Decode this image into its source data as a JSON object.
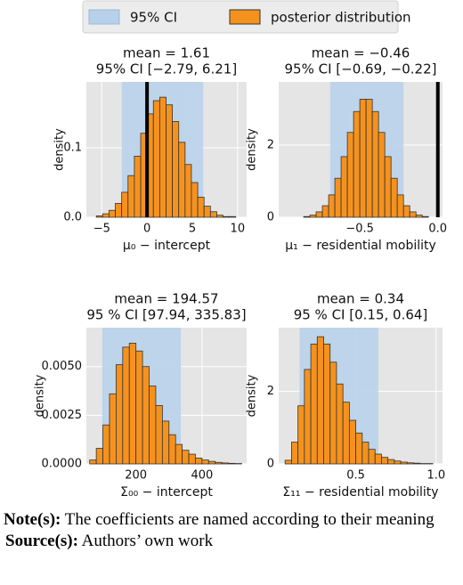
{
  "legend": [
    {
      "name": "95% CI",
      "color": "#b8d1ea"
    },
    {
      "name": "posterior distribution",
      "color": "#f5921e"
    }
  ],
  "chart_data": [
    {
      "type": "histogram",
      "title": [
        "mean = 1.61",
        "95% CI [−2.79, 6.21]"
      ],
      "ci": [
        -2.79,
        6.21
      ],
      "vline": 0,
      "xlabel": "μ₀ − intercept",
      "ylabel": "density",
      "bins": [
        -5.6,
        -4.9,
        -4.2,
        -3.5,
        -2.8,
        -2.1,
        -1.4,
        -0.7,
        0,
        0.7,
        1.4,
        2.1,
        2.8,
        3.5,
        4.2,
        4.9,
        5.6,
        6.3,
        7,
        7.7,
        8.4,
        9.1,
        9.8
      ],
      "values": [
        0.002,
        0.005,
        0.01,
        0.02,
        0.036,
        0.06,
        0.088,
        0.121,
        0.149,
        0.168,
        0.173,
        0.162,
        0.138,
        0.108,
        0.076,
        0.05,
        0.029,
        0.016,
        0.008,
        0.003,
        0.001,
        0.001
      ],
      "xlim": [
        -6.7,
        11
      ],
      "ylim": [
        0,
        0.195
      ],
      "xticks": [
        {
          "value": -5,
          "label": "−5"
        },
        0,
        5,
        10
      ],
      "yticks": [
        {
          "value": 0,
          "label": "0.0"
        },
        0.1
      ],
      "grid": true
    },
    {
      "type": "histogram",
      "title": [
        "mean = −0.46",
        "95% CI [−0.69, −0.22]"
      ],
      "ci": [
        -0.69,
        -0.22
      ],
      "vline": 0,
      "xlabel": "μ₁ − residential mobility",
      "ylabel": "density",
      "bins": [
        -0.86,
        -0.82,
        -0.78,
        -0.74,
        -0.7,
        -0.66,
        -0.62,
        -0.58,
        -0.54,
        -0.5,
        -0.46,
        -0.42,
        -0.38,
        -0.34,
        -0.3,
        -0.26,
        -0.22,
        -0.18,
        -0.14,
        -0.1,
        -0.06
      ],
      "values": [
        0.02,
        0.06,
        0.15,
        0.32,
        0.62,
        1.08,
        1.68,
        2.35,
        2.93,
        3.27,
        3.27,
        2.93,
        2.35,
        1.68,
        1.08,
        0.62,
        0.32,
        0.15,
        0.06,
        0.02
      ],
      "xlim": [
        -1.02,
        0.03
      ],
      "ylim": [
        0,
        3.75
      ],
      "xticks": [
        {
          "value": -0.5,
          "label": "−0.5"
        },
        {
          "value": 0,
          "label": "0.0"
        }
      ],
      "yticks": [
        0,
        2
      ],
      "grid": true
    },
    {
      "type": "histogram",
      "title": [
        "mean = 194.57",
        "95 % CI [97.94, 335.83]"
      ],
      "ci": [
        97.94,
        335.83
      ],
      "xlabel": "Σ₀₀ − intercept",
      "ylabel": "density",
      "bins": [
        60,
        80,
        100,
        120,
        140,
        160,
        180,
        200,
        220,
        240,
        260,
        280,
        300,
        320,
        340,
        360,
        380,
        400,
        420,
        440,
        460,
        480,
        500,
        520
      ],
      "values": [
        0.0002,
        0.0008,
        0.002,
        0.0036,
        0.0051,
        0.006,
        0.0062,
        0.0058,
        0.005,
        0.004,
        0.003,
        0.0022,
        0.0015,
        0.001,
        0.0007,
        0.0005,
        0.0003,
        0.0002,
        0.00013,
        8e-05,
        5e-05,
        3e-05,
        2e-05
      ],
      "xlim": [
        50,
        535
      ],
      "ylim": [
        0,
        0.007
      ],
      "xticks": [
        200,
        400
      ],
      "yticks": [
        {
          "value": 0,
          "label": "0.0000"
        },
        {
          "value": 0.0025,
          "label": "0.0025"
        },
        {
          "value": 0.005,
          "label": "0.0050"
        }
      ],
      "grid": true
    },
    {
      "type": "histogram",
      "title": [
        "mean = 0.34",
        "95 % CI [0.15, 0.64]"
      ],
      "ci": [
        0.15,
        0.64
      ],
      "xlabel": "Σ₁₁ − residential mobility",
      "ylabel": "density",
      "bins": [
        0.06,
        0.1,
        0.14,
        0.18,
        0.22,
        0.26,
        0.3,
        0.34,
        0.38,
        0.42,
        0.46,
        0.5,
        0.54,
        0.58,
        0.62,
        0.66,
        0.7,
        0.74,
        0.78,
        0.82,
        0.86,
        0.9,
        0.94,
        0.98
      ],
      "values": [
        0.1,
        0.6,
        1.6,
        2.6,
        3.3,
        3.5,
        3.3,
        2.8,
        2.2,
        1.7,
        1.2,
        0.85,
        0.6,
        0.4,
        0.27,
        0.18,
        0.12,
        0.08,
        0.05,
        0.03,
        0.02,
        0.01,
        0.01
      ],
      "xlim": [
        0.02,
        1.04
      ],
      "ylim": [
        0,
        3.75
      ],
      "xticks": [
        0.5,
        {
          "value": 1,
          "label": "1.0"
        }
      ],
      "yticks": [
        0,
        2
      ],
      "grid": true
    }
  ],
  "notes": {
    "note_label": "Note(s):",
    "note_text": "The coefficients are named according to their meaning",
    "source_label": "Source(s):",
    "source_text": "Authors’ own work"
  }
}
